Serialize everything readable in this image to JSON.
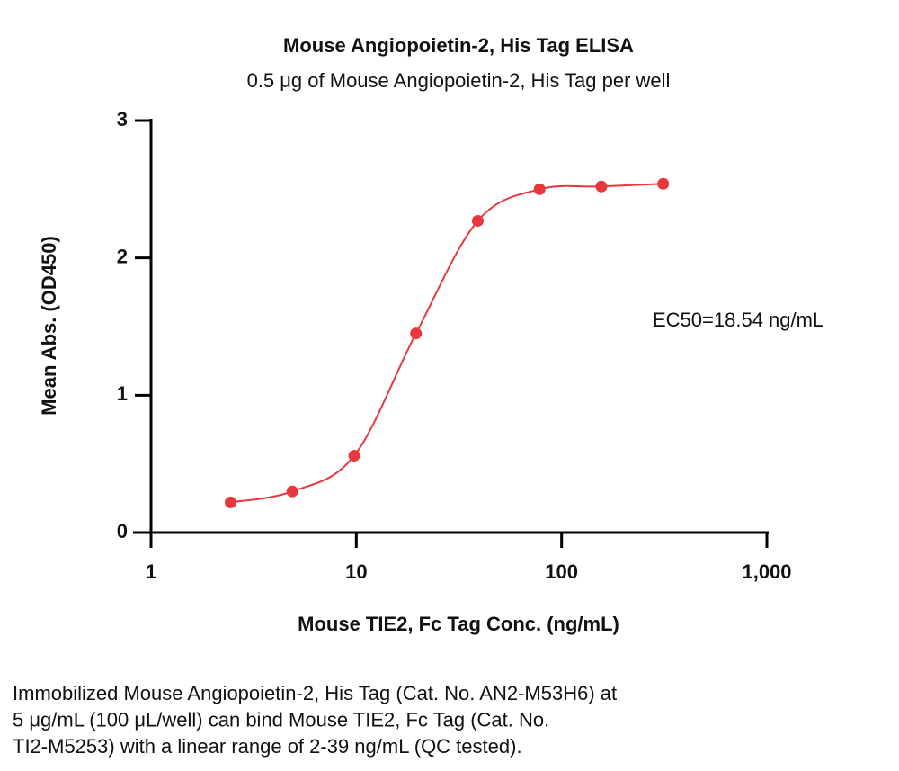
{
  "chart_data": {
    "type": "line",
    "title": "Mouse Angiopoietin-2, His Tag ELISA",
    "subtitle": "0.5 μg of Mouse Angiopoietin-2, His Tag per well",
    "x_label": "Mouse TIE2, Fc Tag Conc. (ng/mL)",
    "y_label": "Mean Abs. (OD450)",
    "annotation": "EC50=18.54 ng/mL",
    "x": [
      2.44,
      4.88,
      9.77,
      19.53,
      39.06,
      78.13,
      156.25,
      312.5
    ],
    "series": [
      {
        "name": "Mean Abs.",
        "color": "#e8383d",
        "values": [
          0.22,
          0.3,
          0.56,
          1.45,
          2.27,
          2.5,
          2.52,
          2.54
        ]
      }
    ],
    "xscale": "log",
    "xlim": [
      1,
      1000
    ],
    "xticks": [
      1,
      10,
      100,
      {
        "value": 1000,
        "label": "1,000"
      }
    ],
    "ylim": [
      0,
      3
    ],
    "yticks": [
      0,
      1,
      2,
      3
    ],
    "caption": [
      "Immobilized Mouse Angiopoietin-2, His Tag (Cat. No. AN2-M53H6) at",
      "5 μg/mL (100 μL/well) can bind Mouse TIE2, Fc Tag (Cat. No.",
      "TI2-M5253) with a linear range of 2-39 ng/mL (QC tested)."
    ]
  }
}
